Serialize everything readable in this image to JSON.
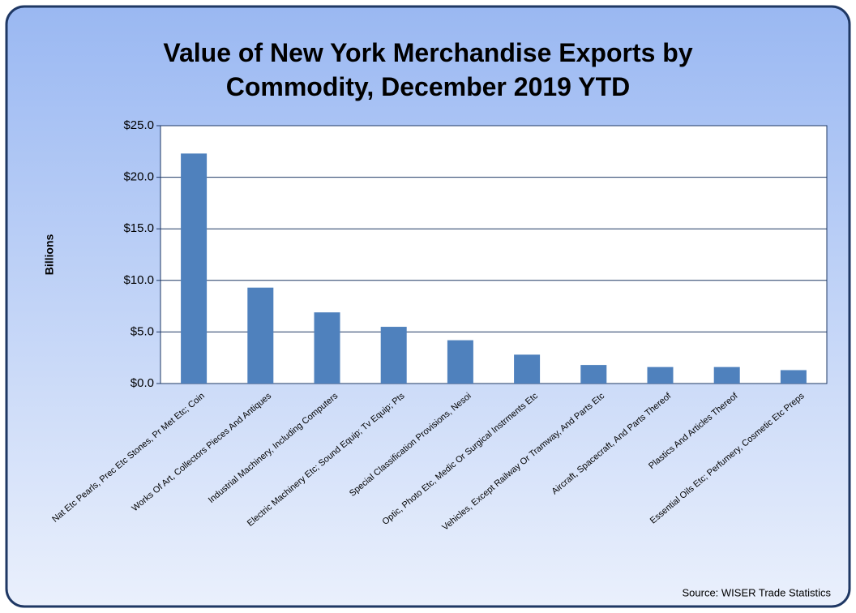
{
  "chart_data": {
    "type": "bar",
    "title": "Value of New York Merchandise Exports by Commodity, December 2019 YTD",
    "y_label": "Billions",
    "source": "Source: WISER Trade Statistics",
    "categories": [
      "Nat Etc Pearls, Prec Etc Stones, Pr Met Etc; Coin",
      "Works Of Art, Collectors Pieces And Antiques",
      "Industrial Machinery, Including Computers",
      "Electric Machinery Etc; Sound Equip; Tv Equip; Pts",
      "Special Classification Provisions, Nesoi",
      "Optic, Photo Etc, Medic Or Surgical Instrments Etc",
      "Vehicles, Except Railway Or Tramway, And Parts Etc",
      "Aircraft, Spacecraft, And Parts Thereof",
      "Plastics And Articles Thereof",
      "Essential Oils Etc; Perfumery, Cosmetic Etc Preps"
    ],
    "values": [
      22.3,
      9.3,
      6.9,
      5.5,
      4.2,
      2.8,
      1.8,
      1.6,
      1.6,
      1.3
    ],
    "color": "#4f81bd",
    "ylim": [
      0,
      25
    ],
    "yticks": [
      {
        "value": 0,
        "label": "$0.0"
      },
      {
        "value": 5,
        "label": "$5.0"
      },
      {
        "value": 10,
        "label": "$10.0"
      },
      {
        "value": 15,
        "label": "$15.0"
      },
      {
        "value": 20,
        "label": "$20.0"
      },
      {
        "value": 25,
        "label": "$25.0"
      }
    ],
    "grid": true
  }
}
